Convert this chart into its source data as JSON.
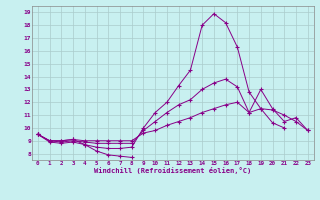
{
  "xlabel": "Windchill (Refroidissement éolien,°C)",
  "bg_color": "#c8f0f0",
  "line_color": "#880088",
  "xlim": [
    -0.5,
    23.5
  ],
  "ylim": [
    7.5,
    19.5
  ],
  "xticks": [
    0,
    1,
    2,
    3,
    4,
    5,
    6,
    7,
    8,
    9,
    10,
    11,
    12,
    13,
    14,
    15,
    16,
    17,
    18,
    19,
    20,
    21,
    22,
    23
  ],
  "yticks": [
    8,
    9,
    10,
    11,
    12,
    13,
    14,
    15,
    16,
    17,
    18,
    19
  ],
  "series": [
    [
      9.5,
      9.0,
      9.0,
      9.1,
      8.7,
      8.2,
      7.9,
      7.8,
      7.7,
      null,
      null,
      null,
      null,
      null,
      null,
      null,
      null,
      null,
      null,
      null,
      null,
      null,
      null,
      null
    ],
    [
      9.5,
      8.9,
      8.8,
      8.9,
      8.7,
      8.5,
      8.4,
      8.4,
      8.5,
      10.0,
      11.2,
      12.0,
      13.3,
      14.5,
      18.0,
      18.9,
      18.2,
      16.3,
      12.8,
      11.5,
      10.4,
      10.0,
      null,
      null
    ],
    [
      9.5,
      9.0,
      8.9,
      9.0,
      8.9,
      8.8,
      8.8,
      8.8,
      8.8,
      9.8,
      10.5,
      11.2,
      11.8,
      12.2,
      13.0,
      13.5,
      13.8,
      13.2,
      11.2,
      13.0,
      11.5,
      10.5,
      10.8,
      9.8
    ],
    [
      9.5,
      9.0,
      9.0,
      9.1,
      9.0,
      9.0,
      9.0,
      9.0,
      9.0,
      9.6,
      9.8,
      10.2,
      10.5,
      10.8,
      11.2,
      11.5,
      11.8,
      12.0,
      11.2,
      11.5,
      11.4,
      11.0,
      10.5,
      9.8
    ]
  ]
}
